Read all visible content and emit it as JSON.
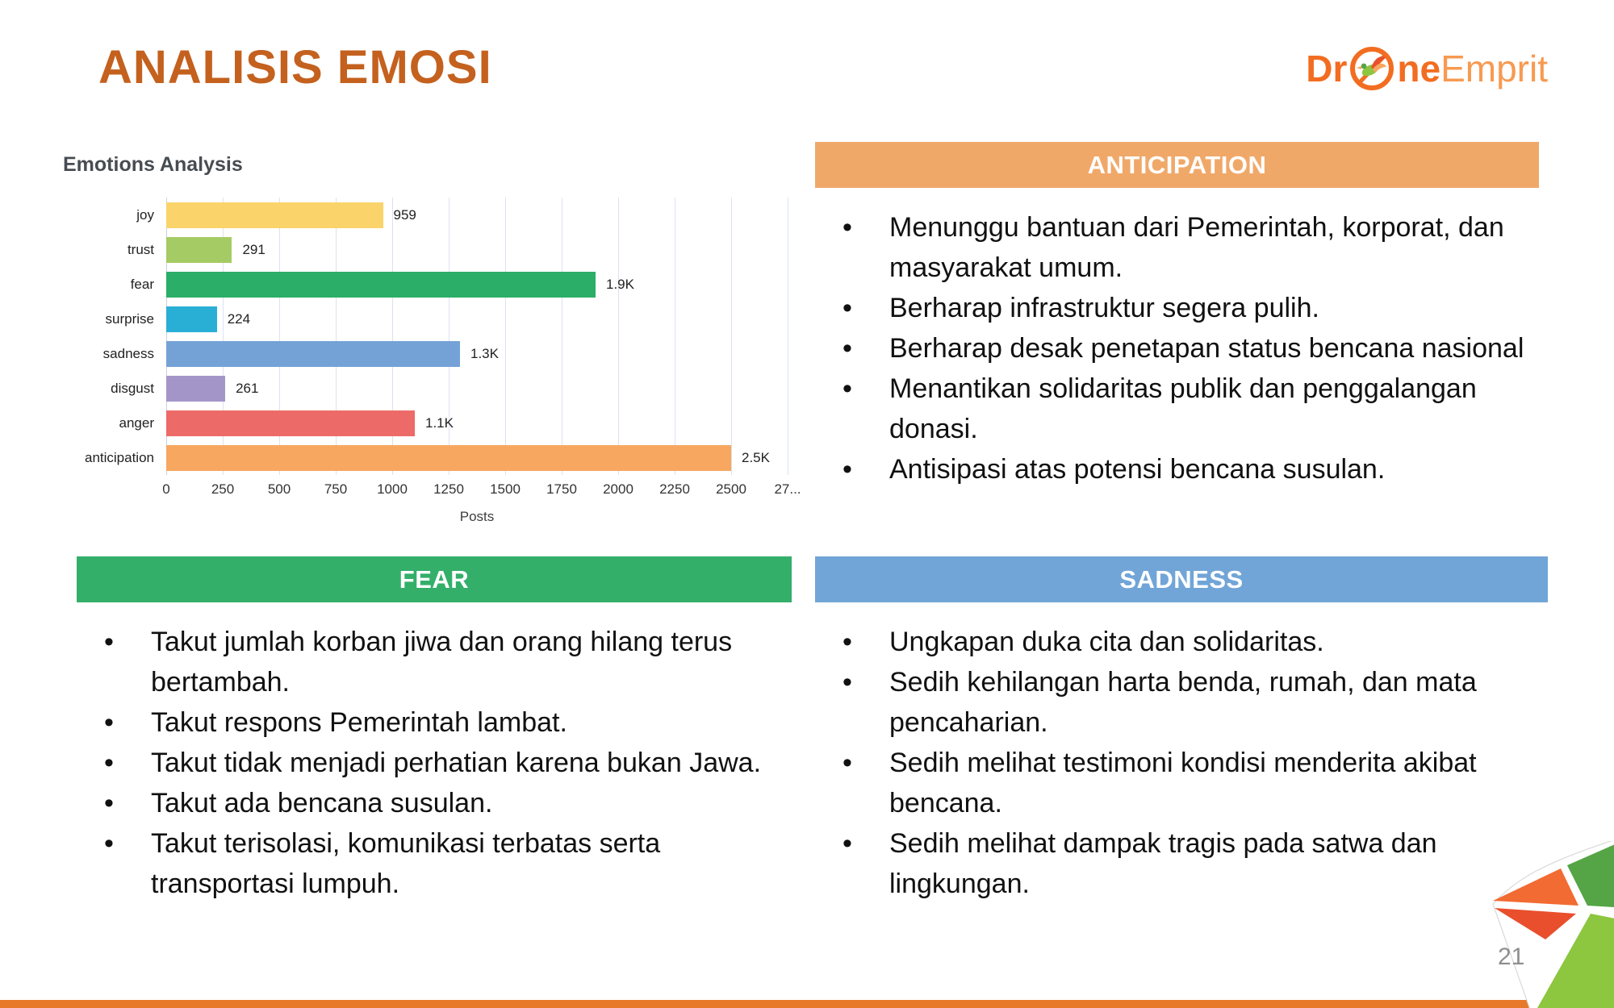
{
  "slide": {
    "title": "ANALISIS EMOSI",
    "title_color": "#C4611E",
    "page_number": "21",
    "bottom_strip_color": "#E8782A"
  },
  "logo": {
    "name": "DroneEmprit",
    "text_bold_1": "Dr",
    "text_bold_2": "ne",
    "text_light": "Emprit",
    "orange": "#F26D21",
    "light_orange": "#F79A51"
  },
  "chart_data": {
    "type": "bar",
    "orientation": "horizontal",
    "title": "Emotions Analysis",
    "categories": [
      "joy",
      "trust",
      "fear",
      "surprise",
      "sadness",
      "disgust",
      "anger",
      "anticipation"
    ],
    "values": [
      959,
      291,
      1900,
      224,
      1300,
      261,
      1100,
      2500
    ],
    "value_labels": [
      "959",
      "291",
      "1.9K",
      "224",
      "1.3K",
      "261",
      "1.1K",
      "2.5K"
    ],
    "bar_colors": [
      "#FAD36B",
      "#A5CB64",
      "#2BAE68",
      "#29AFD6",
      "#74A2D6",
      "#A495C9",
      "#EC6B68",
      "#F7A75F"
    ],
    "xlabel": "Posts",
    "x_ticks": [
      "0",
      "250",
      "500",
      "750",
      "1000",
      "1250",
      "1500",
      "1750",
      "2000",
      "2250",
      "2500",
      "27..."
    ],
    "xlim": [
      0,
      2750
    ],
    "grid": true,
    "legend": false
  },
  "panels": [
    {
      "id": "anticipation",
      "header": "ANTICIPATION",
      "color": "#F0A869",
      "bullets": [
        "Menunggu bantuan dari Pemerintah, korporat, dan masyarakat umum.",
        "Berharap infrastruktur segera pulih.",
        "Berharap desak penetapan status bencana nasional",
        "Menantikan solidaritas publik dan penggalangan donasi.",
        "Antisipasi atas potensi bencana susulan."
      ]
    },
    {
      "id": "fear",
      "header": "FEAR",
      "color": "#33AF6A",
      "bullets": [
        "Takut jumlah korban jiwa dan orang hilang terus bertambah.",
        "Takut respons Pemerintah lambat.",
        "Takut tidak menjadi perhatian karena bukan Jawa.",
        "Takut ada bencana susulan.",
        "Takut terisolasi, komunikasi terbatas serta transportasi lumpuh."
      ]
    },
    {
      "id": "sadness",
      "header": "SADNESS",
      "color": "#71A5D7",
      "bullets": [
        "Ungkapan duka cita dan solidaritas.",
        "Sedih kehilangan harta benda, rumah, dan mata pencaharian.",
        "Sedih melihat testimoni kondisi menderita akibat bencana.",
        "Sedih melihat dampak tragis pada satwa dan lingkungan."
      ]
    }
  ],
  "decoration": {
    "orange": "#F26B32",
    "red": "#E94F2C",
    "dark_green": "#55A546",
    "light_green": "#8DC63F"
  }
}
